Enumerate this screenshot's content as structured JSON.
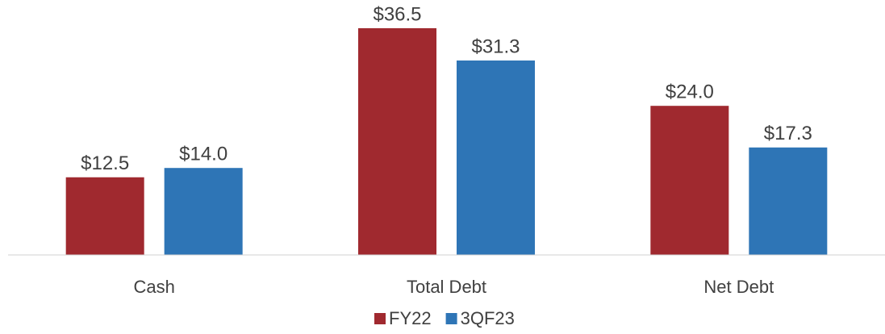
{
  "chart_data": {
    "type": "bar",
    "categories": [
      "Cash",
      "Total Debt",
      "Net Debt"
    ],
    "series": [
      {
        "name": "FY22",
        "color": "#a0292f",
        "values": [
          12.5,
          36.5,
          24.0
        ],
        "value_labels": [
          "$12.5",
          "$36.5",
          "$24.0"
        ]
      },
      {
        "name": "3QF23",
        "color": "#2e75b6",
        "values": [
          14.0,
          31.3,
          17.3
        ],
        "value_labels": [
          "$14.0",
          "$31.3",
          "$17.3"
        ]
      }
    ],
    "ylim": [
      0,
      40
    ],
    "legend": "bottom"
  }
}
